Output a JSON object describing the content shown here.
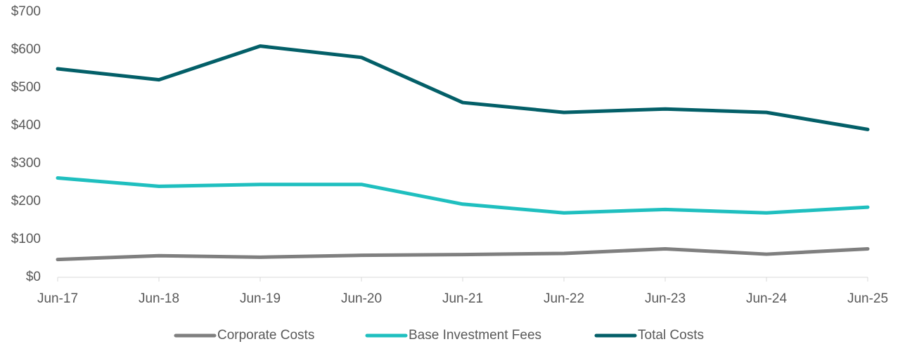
{
  "chart_data": {
    "type": "line",
    "categories": [
      "Jun-17",
      "Jun-18",
      "Jun-19",
      "Jun-20",
      "Jun-21",
      "Jun-22",
      "Jun-23",
      "Jun-24",
      "Jun-25"
    ],
    "series": [
      {
        "name": "Corporate Costs",
        "color": "#7f7f7f",
        "values": [
          47,
          57,
          53,
          58,
          60,
          63,
          75,
          61,
          75
        ]
      },
      {
        "name": "Base Investment Fees",
        "color": "#1fbfbf",
        "values": [
          262,
          240,
          245,
          245,
          193,
          170,
          179,
          170,
          185
        ]
      },
      {
        "name": "Total Costs",
        "color": "#035f68",
        "values": [
          550,
          521,
          610,
          580,
          461,
          435,
          444,
          435,
          390
        ]
      }
    ],
    "ylim": [
      0,
      700
    ],
    "yticks": [
      {
        "value": 0,
        "label": "$0"
      },
      {
        "value": 100,
        "label": "$100"
      },
      {
        "value": 200,
        "label": "$200"
      },
      {
        "value": 300,
        "label": "$300"
      },
      {
        "value": 400,
        "label": "$400"
      },
      {
        "value": 500,
        "label": "$500"
      },
      {
        "value": 600,
        "label": "$600"
      },
      {
        "value": 700,
        "label": "$700"
      }
    ],
    "legend": "bottom"
  }
}
